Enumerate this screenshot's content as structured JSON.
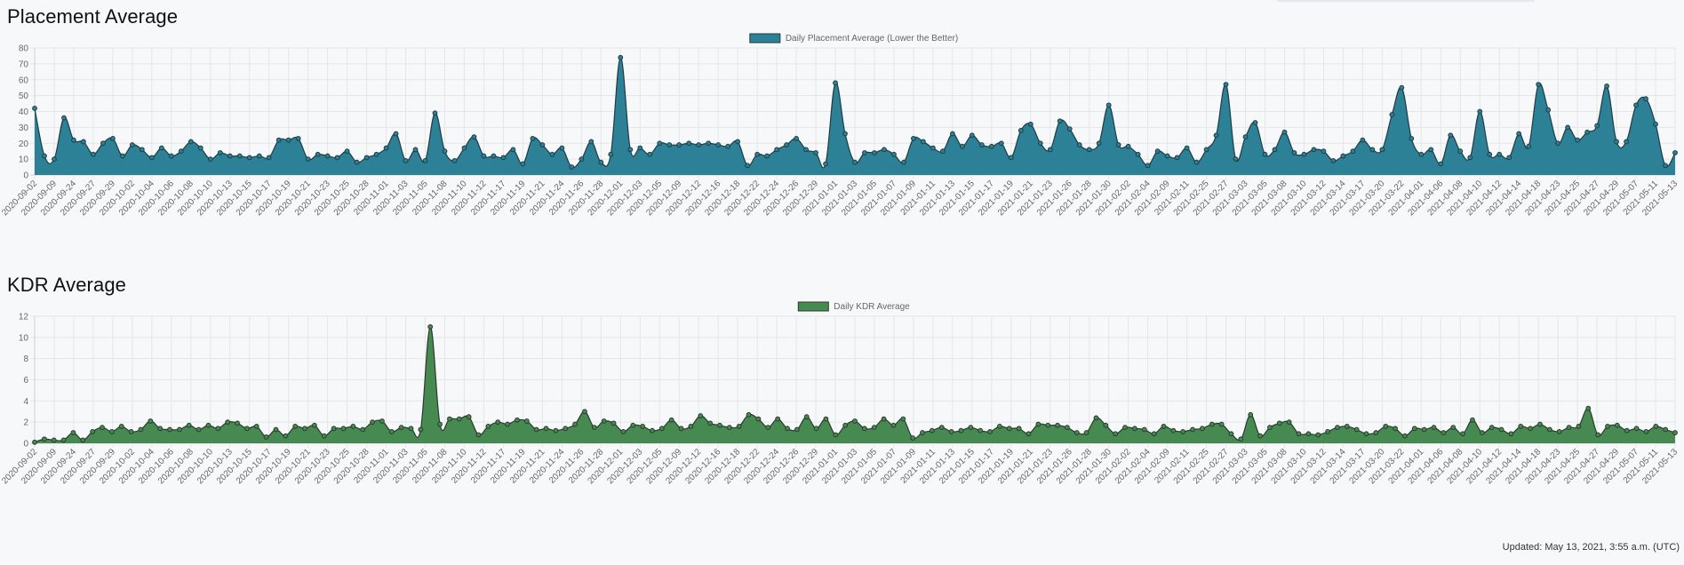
{
  "sections": [
    {
      "title": "Placement Average"
    },
    {
      "title": "KDR Average"
    }
  ],
  "footer": {
    "updated": "Updated: May 13, 2021, 3:55 a.m. (UTC)"
  },
  "chart_data": [
    {
      "type": "area",
      "legend": "Daily Placement Average (Lower the Better)",
      "legend_position": "top-center",
      "grid": true,
      "ylim": [
        0,
        80
      ],
      "yticks": [
        0,
        10,
        20,
        30,
        40,
        50,
        60,
        70,
        80
      ],
      "fill_color": "#2d8196",
      "line_color": "#1f3c45",
      "x_tick_labels": [
        "2020-09-02",
        "2020-09-09",
        "2020-09-24",
        "2020-09-27",
        "2020-09-29",
        "2020-10-02",
        "2020-10-04",
        "2020-10-06",
        "2020-10-08",
        "2020-10-10",
        "2020-10-13",
        "2020-10-15",
        "2020-10-17",
        "2020-10-19",
        "2020-10-21",
        "2020-10-23",
        "2020-10-25",
        "2020-10-28",
        "2020-11-01",
        "2020-11-03",
        "2020-11-05",
        "2020-11-08",
        "2020-11-10",
        "2020-11-12",
        "2020-11-17",
        "2020-11-19",
        "2020-11-21",
        "2020-11-24",
        "2020-11-26",
        "2020-11-28",
        "2020-12-01",
        "2020-12-03",
        "2020-12-05",
        "2020-12-09",
        "2020-12-12",
        "2020-12-16",
        "2020-12-18",
        "2020-12-22",
        "2020-12-24",
        "2020-12-26",
        "2020-12-29",
        "2021-01-01",
        "2021-01-03",
        "2021-01-05",
        "2021-01-07",
        "2021-01-09",
        "2021-01-11",
        "2021-01-13",
        "2021-01-15",
        "2021-01-17",
        "2021-01-19",
        "2021-01-21",
        "2021-01-23",
        "2021-01-26",
        "2021-01-28",
        "2021-01-30",
        "2021-02-02",
        "2021-02-04",
        "2021-02-09",
        "2021-02-11",
        "2021-02-25",
        "2021-02-27",
        "2021-03-03",
        "2021-03-05",
        "2021-03-08",
        "2021-03-10",
        "2021-03-12",
        "2021-03-14",
        "2021-03-17",
        "2021-03-20",
        "2021-03-22",
        "2021-04-01",
        "2021-04-06",
        "2021-04-08",
        "2021-04-10",
        "2021-04-12",
        "2021-04-14",
        "2021-04-18",
        "2021-04-23",
        "2021-04-25",
        "2021-04-27",
        "2021-04-29",
        "2021-05-07",
        "2021-05-11",
        "2021-05-13"
      ],
      "values": [
        42,
        12,
        10,
        36,
        22,
        21,
        13,
        20,
        23,
        12,
        19,
        16,
        11,
        17,
        12,
        15,
        21,
        17,
        10,
        14,
        12,
        12,
        11,
        12,
        11,
        22,
        22,
        23,
        10,
        13,
        12,
        11,
        15,
        8,
        11,
        13,
        17,
        26,
        9,
        16,
        9,
        39,
        15,
        9,
        17,
        24,
        12,
        12,
        11,
        16,
        7,
        23,
        19,
        13,
        17,
        5,
        10,
        21,
        8,
        13,
        74,
        16,
        17,
        13,
        20,
        19,
        19,
        20,
        19,
        20,
        19,
        18,
        21,
        6,
        13,
        12,
        16,
        19,
        23,
        16,
        14,
        7,
        58,
        26,
        8,
        14,
        14,
        16,
        13,
        8,
        23,
        21,
        17,
        15,
        26,
        18,
        25,
        19,
        18,
        20,
        11,
        28,
        32,
        20,
        16,
        34,
        29,
        19,
        16,
        20,
        44,
        19,
        18,
        13,
        6,
        15,
        12,
        11,
        17,
        8,
        16,
        25,
        57,
        10,
        24,
        33,
        13,
        16,
        27,
        14,
        13,
        16,
        15,
        9,
        12,
        15,
        22,
        16,
        16,
        38,
        55,
        23,
        13,
        16,
        7,
        25,
        15,
        11,
        40,
        13,
        13,
        11,
        26,
        18,
        57,
        41,
        20,
        30,
        22,
        27,
        31,
        56,
        21,
        21,
        44,
        48,
        32,
        6,
        14
      ]
    },
    {
      "type": "area",
      "legend": "Daily KDR Average",
      "legend_position": "top-center",
      "grid": true,
      "ylim": [
        0,
        12
      ],
      "yticks": [
        0,
        2,
        4,
        6,
        8,
        10,
        12
      ],
      "fill_color": "#468a52",
      "line_color": "#2b3a2e",
      "x_tick_labels": [
        "2020-09-02",
        "2020-09-09",
        "2020-09-24",
        "2020-09-27",
        "2020-09-29",
        "2020-10-02",
        "2020-10-04",
        "2020-10-06",
        "2020-10-08",
        "2020-10-10",
        "2020-10-13",
        "2020-10-15",
        "2020-10-17",
        "2020-10-19",
        "2020-10-21",
        "2020-10-23",
        "2020-10-25",
        "2020-10-28",
        "2020-11-01",
        "2020-11-03",
        "2020-11-05",
        "2020-11-08",
        "2020-11-10",
        "2020-11-12",
        "2020-11-17",
        "2020-11-19",
        "2020-11-21",
        "2020-11-24",
        "2020-11-26",
        "2020-11-28",
        "2020-12-01",
        "2020-12-03",
        "2020-12-05",
        "2020-12-09",
        "2020-12-12",
        "2020-12-16",
        "2020-12-18",
        "2020-12-22",
        "2020-12-24",
        "2020-12-26",
        "2020-12-29",
        "2021-01-01",
        "2021-01-03",
        "2021-01-05",
        "2021-01-07",
        "2021-01-09",
        "2021-01-11",
        "2021-01-13",
        "2021-01-15",
        "2021-01-17",
        "2021-01-19",
        "2021-01-21",
        "2021-01-23",
        "2021-01-26",
        "2021-01-28",
        "2021-01-30",
        "2021-02-02",
        "2021-02-04",
        "2021-02-09",
        "2021-02-11",
        "2021-02-25",
        "2021-02-27",
        "2021-03-03",
        "2021-03-05",
        "2021-03-08",
        "2021-03-10",
        "2021-03-12",
        "2021-03-14",
        "2021-03-17",
        "2021-03-20",
        "2021-03-22",
        "2021-04-01",
        "2021-04-06",
        "2021-04-08",
        "2021-04-10",
        "2021-04-12",
        "2021-04-14",
        "2021-04-18",
        "2021-04-23",
        "2021-04-25",
        "2021-04-27",
        "2021-04-29",
        "2021-05-07",
        "2021-05-11",
        "2021-05-13"
      ],
      "values": [
        0.1,
        0.4,
        0.3,
        0.3,
        1.0,
        0.3,
        1.1,
        1.5,
        1.1,
        1.6,
        1.1,
        1.3,
        2.1,
        1.4,
        1.3,
        1.3,
        1.7,
        1.3,
        1.7,
        1.4,
        2.0,
        1.9,
        1.4,
        1.6,
        0.6,
        1.3,
        0.7,
        1.6,
        1.4,
        1.7,
        0.7,
        1.4,
        1.4,
        1.6,
        1.3,
        2.0,
        2.1,
        1.1,
        1.5,
        1.4,
        1.3,
        11.0,
        1.8,
        2.3,
        2.3,
        2.5,
        0.8,
        1.6,
        2.0,
        1.8,
        2.2,
        2.1,
        1.3,
        1.4,
        1.2,
        1.4,
        1.8,
        3.0,
        1.5,
        2.1,
        1.9,
        1.1,
        1.7,
        1.6,
        1.2,
        1.4,
        2.2,
        1.4,
        1.6,
        2.6,
        1.9,
        1.7,
        1.5,
        1.6,
        2.7,
        2.3,
        1.5,
        2.3,
        1.4,
        1.3,
        2.5,
        1.4,
        2.3,
        0.8,
        1.7,
        2.1,
        1.4,
        1.5,
        2.3,
        1.7,
        2.3,
        0.5,
        1.0,
        1.2,
        1.5,
        1.1,
        1.2,
        1.5,
        1.2,
        1.1,
        1.6,
        1.4,
        1.4,
        0.9,
        1.8,
        1.7,
        1.7,
        1.5,
        1.0,
        1.0,
        2.4,
        1.7,
        0.9,
        1.5,
        1.4,
        1.3,
        0.9,
        1.6,
        1.2,
        1.1,
        1.3,
        1.4,
        1.8,
        1.8,
        0.9,
        0.4,
        2.7,
        0.7,
        1.5,
        1.9,
        2.0,
        0.9,
        0.9,
        0.8,
        1.1,
        1.5,
        1.6,
        1.3,
        0.9,
        1.0,
        1.6,
        1.4,
        0.7,
        1.4,
        1.3,
        1.5,
        1.0,
        1.5,
        0.9,
        2.2,
        1.0,
        1.5,
        1.3,
        0.9,
        1.6,
        1.4,
        1.8,
        1.3,
        1.1,
        1.5,
        1.6,
        3.3,
        0.8,
        1.6,
        1.7,
        1.2,
        1.4,
        1.1,
        1.6,
        1.3,
        1.0
      ]
    }
  ]
}
